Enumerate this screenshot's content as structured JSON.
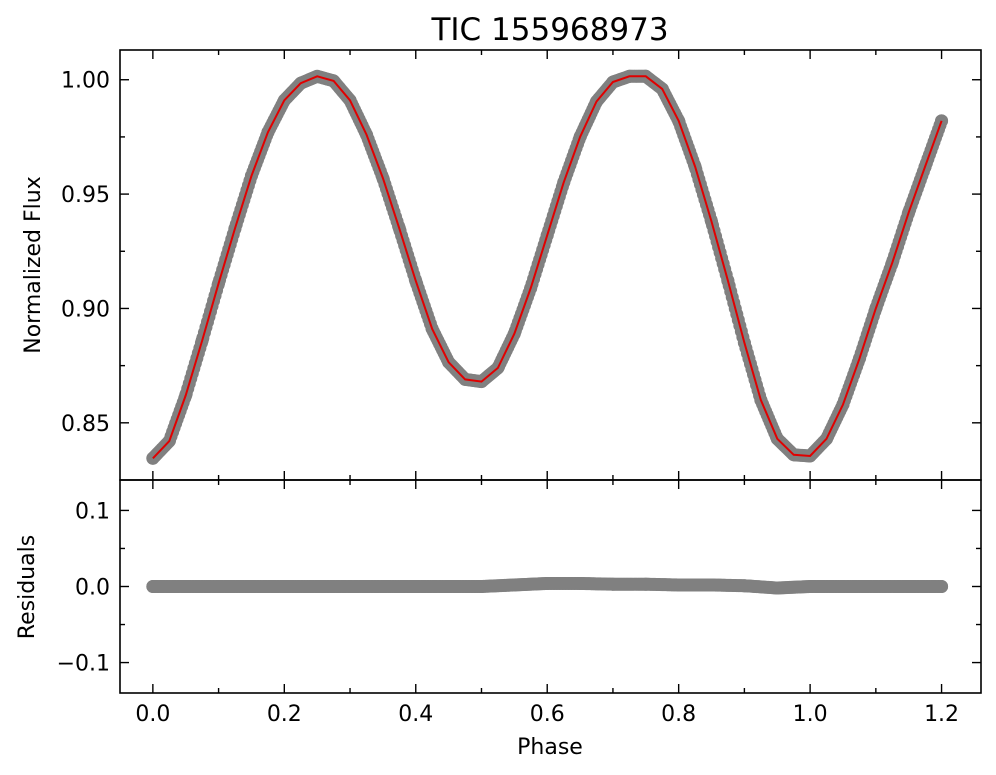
{
  "chart_data": [
    {
      "type": "scatter",
      "panel": "main",
      "title": "TIC 155968973",
      "xlabel": "",
      "ylabel": "Normalized Flux",
      "xlim": [
        -0.05,
        1.26
      ],
      "ylim": [
        0.825,
        1.013
      ],
      "x_ticks": [
        0.0,
        0.2,
        0.4,
        0.6,
        0.8,
        1.0,
        1.2
      ],
      "y_ticks": [
        0.85,
        0.9,
        0.95,
        1.0
      ],
      "y_tick_labels": [
        "0.85",
        "0.90",
        "0.95",
        "1.00"
      ],
      "series": [
        {
          "kind": "data-points",
          "color": "#808080",
          "x": [
            0.0,
            0.025,
            0.05,
            0.075,
            0.1,
            0.125,
            0.15,
            0.175,
            0.2,
            0.225,
            0.25,
            0.275,
            0.3,
            0.325,
            0.35,
            0.375,
            0.4,
            0.425,
            0.45,
            0.475,
            0.5,
            0.525,
            0.55,
            0.575,
            0.6,
            0.625,
            0.65,
            0.675,
            0.7,
            0.725,
            0.75,
            0.775,
            0.8,
            0.825,
            0.85,
            0.875,
            0.9,
            0.925,
            0.95,
            0.975,
            1.0,
            1.025,
            1.05,
            1.075,
            1.1,
            1.125,
            1.15,
            1.175,
            1.2
          ],
          "y": [
            0.8345,
            0.842,
            0.862,
            0.886,
            0.911,
            0.935,
            0.958,
            0.977,
            0.991,
            0.9985,
            1.0015,
            0.9995,
            0.991,
            0.976,
            0.957,
            0.935,
            0.912,
            0.891,
            0.8765,
            0.869,
            0.868,
            0.874,
            0.889,
            0.909,
            0.932,
            0.955,
            0.975,
            0.9905,
            0.999,
            1.0015,
            1.0015,
            0.996,
            0.982,
            0.962,
            0.938,
            0.912,
            0.885,
            0.86,
            0.843,
            0.836,
            0.8355,
            0.843,
            0.858,
            0.878,
            0.9,
            0.92,
            0.942,
            0.962,
            0.982
          ]
        },
        {
          "kind": "model-fit",
          "color": "#e00000",
          "x": [
            0.0,
            0.025,
            0.05,
            0.075,
            0.1,
            0.125,
            0.15,
            0.175,
            0.2,
            0.225,
            0.25,
            0.275,
            0.3,
            0.325,
            0.35,
            0.375,
            0.4,
            0.425,
            0.45,
            0.475,
            0.5,
            0.525,
            0.55,
            0.575,
            0.6,
            0.625,
            0.65,
            0.675,
            0.7,
            0.725,
            0.75,
            0.775,
            0.8,
            0.825,
            0.85,
            0.875,
            0.9,
            0.925,
            0.95,
            0.975,
            1.0,
            1.025,
            1.05,
            1.075,
            1.1,
            1.125,
            1.15,
            1.175,
            1.2
          ],
          "y": [
            0.8345,
            0.842,
            0.862,
            0.886,
            0.911,
            0.935,
            0.958,
            0.977,
            0.991,
            0.9985,
            1.0015,
            0.9995,
            0.991,
            0.976,
            0.957,
            0.935,
            0.912,
            0.891,
            0.8765,
            0.869,
            0.868,
            0.874,
            0.889,
            0.909,
            0.932,
            0.955,
            0.975,
            0.9905,
            0.999,
            1.0015,
            1.0015,
            0.996,
            0.982,
            0.962,
            0.938,
            0.912,
            0.885,
            0.86,
            0.843,
            0.836,
            0.8355,
            0.843,
            0.858,
            0.878,
            0.9,
            0.92,
            0.942,
            0.962,
            0.982
          ]
        }
      ]
    },
    {
      "type": "scatter",
      "panel": "residuals",
      "title": "",
      "xlabel": "Phase",
      "ylabel": "Residuals",
      "xlim": [
        -0.05,
        1.26
      ],
      "ylim": [
        -0.14,
        0.14
      ],
      "x_ticks": [
        0.0,
        0.2,
        0.4,
        0.6,
        0.8,
        1.0,
        1.2
      ],
      "x_tick_labels": [
        "0.0",
        "0.2",
        "0.4",
        "0.6",
        "0.8",
        "1.0",
        "1.2"
      ],
      "y_ticks": [
        -0.1,
        0.0,
        0.1
      ],
      "y_tick_labels": [
        "−0.1",
        "0.0",
        "0.1"
      ],
      "series": [
        {
          "kind": "residual-points",
          "color": "#808080",
          "x": [
            0.0,
            0.05,
            0.1,
            0.15,
            0.2,
            0.25,
            0.3,
            0.35,
            0.4,
            0.45,
            0.5,
            0.55,
            0.6,
            0.65,
            0.7,
            0.75,
            0.8,
            0.85,
            0.9,
            0.95,
            1.0,
            1.05,
            1.1,
            1.15,
            1.2
          ],
          "y": [
            0.0,
            0.0,
            0.0,
            0.0,
            0.0,
            0.0,
            0.0,
            0.0,
            0.0,
            0.0,
            0.0,
            0.002,
            0.004,
            0.004,
            0.003,
            0.003,
            0.002,
            0.002,
            0.001,
            -0.002,
            0.0,
            0.0,
            0.0,
            0.0,
            0.0
          ]
        }
      ]
    }
  ]
}
